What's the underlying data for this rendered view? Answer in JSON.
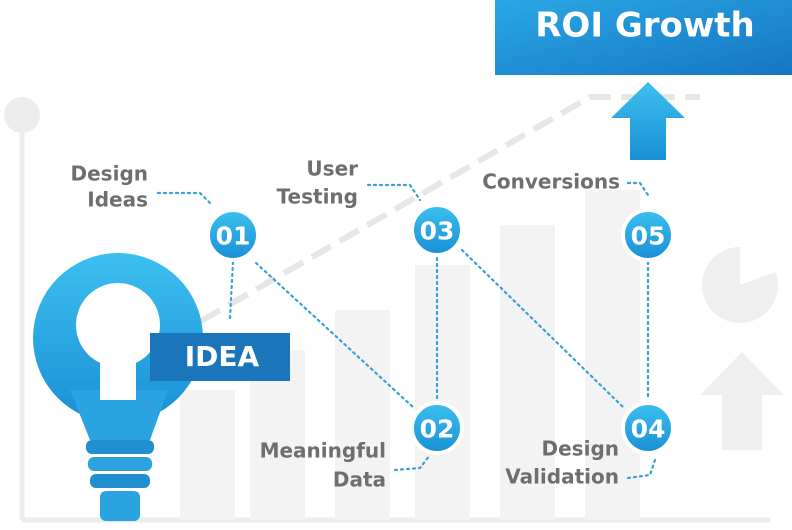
{
  "title": "ROI Growth",
  "idea_label": "IDEA",
  "nodes": [
    {
      "number": "01",
      "label": [
        "Design",
        "Ideas"
      ]
    },
    {
      "number": "02",
      "label": [
        "Meaningful",
        "Data"
      ]
    },
    {
      "number": "03",
      "label": [
        "User",
        "Testing"
      ]
    },
    {
      "number": "04",
      "label": [
        "Design",
        "Validation"
      ]
    },
    {
      "number": "05",
      "label": [
        "Conversions"
      ]
    }
  ]
}
